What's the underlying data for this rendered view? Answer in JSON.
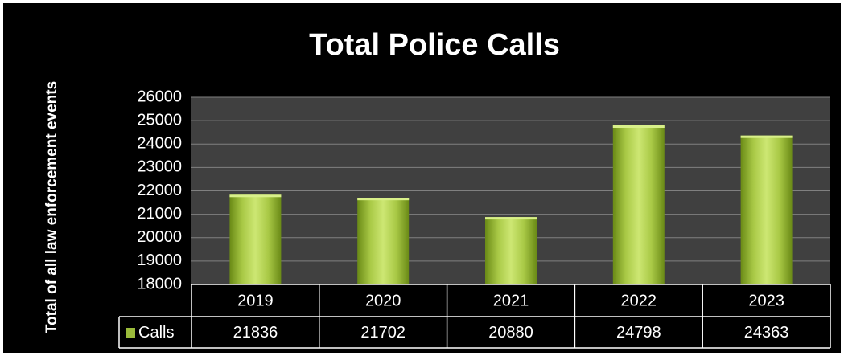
{
  "chart_data": {
    "type": "bar",
    "title": "Total Police Calls",
    "y_label": "Total of all law enforcement events",
    "categories": [
      "2019",
      "2020",
      "2021",
      "2022",
      "2023"
    ],
    "series": [
      {
        "name": "Calls",
        "color": "#9bbb3b",
        "values": [
          21836,
          21702,
          20880,
          24798,
          24363
        ]
      }
    ],
    "ylim": [
      18000,
      26000
    ],
    "yticks": [
      18000,
      19000,
      20000,
      21000,
      22000,
      23000,
      24000,
      25000,
      26000
    ],
    "grid": true
  }
}
